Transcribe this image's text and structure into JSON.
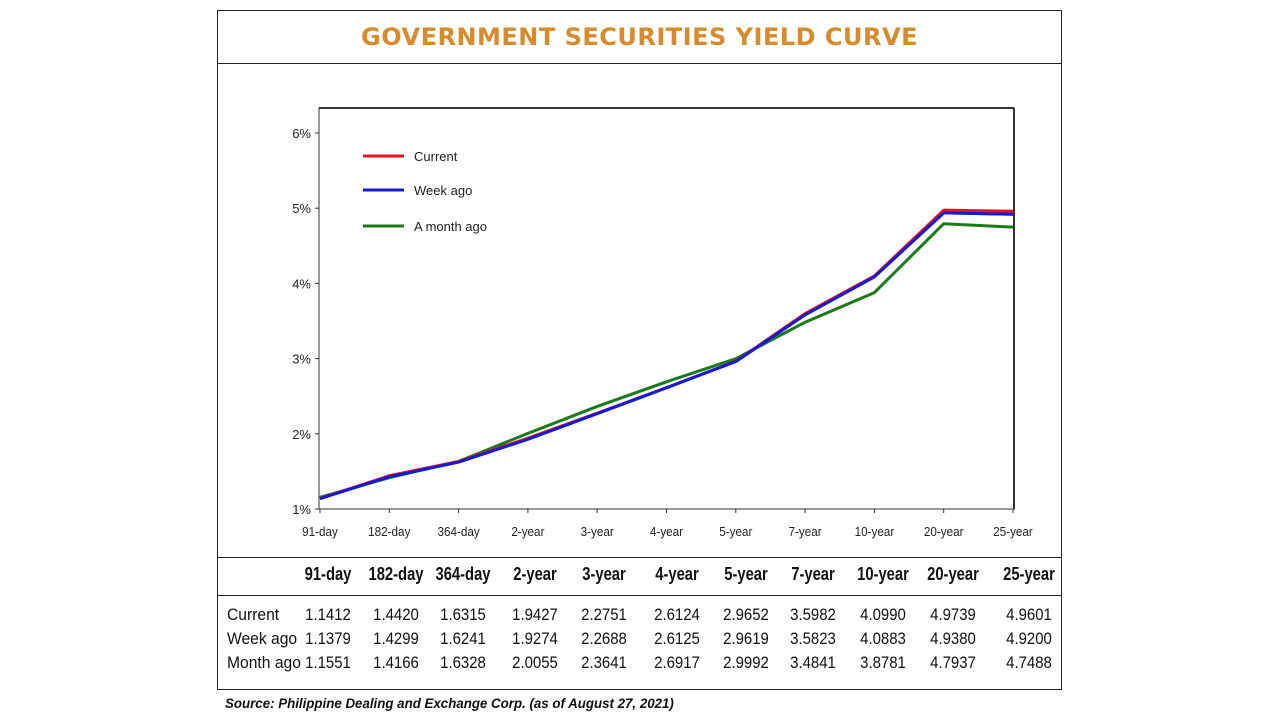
{
  "title": "GOVERNMENT SECURITIES YIELD CURVE",
  "source": "Source: Philippine Dealing and Exchange Corp. (as of August 27, 2021)",
  "chart_data": {
    "type": "line",
    "title": "GOVERNMENT SECURITIES YIELD CURVE",
    "categories": [
      "91-day",
      "182-day",
      "364-day",
      "2-year",
      "3-year",
      "4-year",
      "5-year",
      "7-year",
      "10-year",
      "20-year",
      "25-year"
    ],
    "ylim": [
      1,
      6
    ],
    "yticks": [
      "1%",
      "2%",
      "3%",
      "4%",
      "5%",
      "6%"
    ],
    "grid": false,
    "legend_position": "top-left",
    "series": [
      {
        "name": "Current",
        "color": "#e8141b",
        "values": [
          1.1412,
          1.442,
          1.6315,
          1.9427,
          2.2751,
          2.6124,
          2.9652,
          3.5982,
          4.099,
          4.9739,
          4.9601
        ]
      },
      {
        "name": "Week ago",
        "color": "#1818d8",
        "values": [
          1.1379,
          1.4299,
          1.6241,
          1.9274,
          2.2688,
          2.6125,
          2.9619,
          3.5823,
          4.0883,
          4.938,
          4.92
        ]
      },
      {
        "name": "A month ago",
        "color": "#1a7a1a",
        "values": [
          1.1551,
          1.4166,
          1.6328,
          2.0055,
          2.3641,
          2.6917,
          2.9992,
          3.4841,
          3.8781,
          4.7937,
          4.7488
        ]
      }
    ]
  },
  "table": {
    "headers": [
      "91-day",
      "182-day",
      "364-day",
      "2-year",
      "3-year",
      "4-year",
      "5-year",
      "7-year",
      "10-year",
      "20-year",
      "25-year"
    ],
    "rows": [
      {
        "label": "Current",
        "values": [
          "1.1412",
          "1.4420",
          "1.6315",
          "1.9427",
          "2.2751",
          "2.6124",
          "2.9652",
          "3.5982",
          "4.0990",
          "4.9739",
          "4.9601"
        ]
      },
      {
        "label": "Week ago",
        "values": [
          "1.1379",
          "1.4299",
          "1.6241",
          "1.9274",
          "2.2688",
          "2.6125",
          "2.9619",
          "3.5823",
          "4.0883",
          "4.9380",
          "4.9200"
        ]
      },
      {
        "label": "Month ago",
        "values": [
          "1.1551",
          "1.4166",
          "1.6328",
          "2.0055",
          "2.3641",
          "2.6917",
          "2.9992",
          "3.4841",
          "3.8781",
          "4.7937",
          "4.7488"
        ]
      }
    ]
  }
}
